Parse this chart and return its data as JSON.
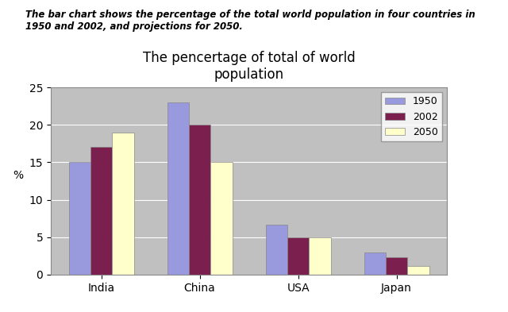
{
  "title": "The pencertage of total of world\npopulation",
  "subtitle": "The bar chart shows the percentage of the total world population in four countries in\n1950 and 2002, and projections for 2050.",
  "categories": [
    "India",
    "China",
    "USA",
    "Japan"
  ],
  "years": [
    "1950",
    "2002",
    "2050"
  ],
  "values": {
    "1950": [
      15,
      23,
      6.7,
      3.0
    ],
    "2002": [
      17,
      20,
      5.0,
      2.3
    ],
    "2050": [
      19,
      15,
      5.0,
      1.2
    ]
  },
  "colors": {
    "1950": "#9999DD",
    "2002": "#7B1F4E",
    "2050": "#FFFFCC"
  },
  "ylabel": "%",
  "ylim": [
    0,
    25
  ],
  "yticks": [
    0,
    5,
    10,
    15,
    20,
    25
  ],
  "plot_bg": "#C0C0C0",
  "fig_bg": "#FFFFFF",
  "legend_pos": "upper right"
}
